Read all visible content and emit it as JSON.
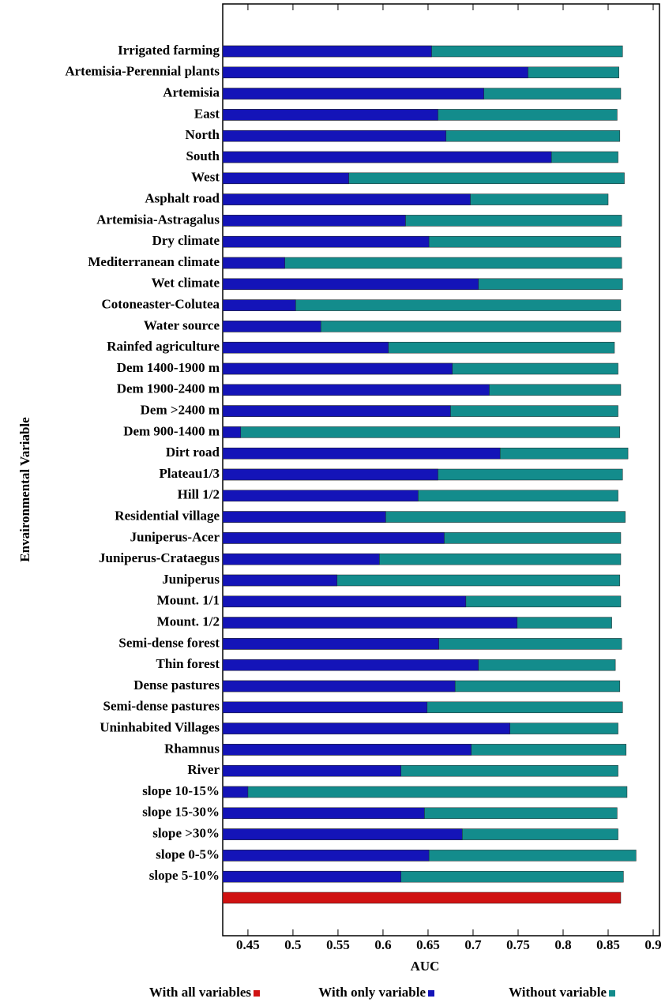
{
  "chart_data": {
    "type": "bar",
    "orientation": "horizontal",
    "x_label": "AUC",
    "y_label": "Envaironmental Variable",
    "categories": [
      "Irrigated farming",
      "Artemisia-Perennial plants",
      "Artemisia",
      "East",
      "North",
      "South",
      "West",
      "Asphalt road",
      "Artemisia-Astragalus",
      "Dry climate",
      "Mediterranean climate",
      "Wet climate",
      "Cotoneaster-Colutea",
      "Water source",
      "Rainfed agriculture",
      "Dem 1400-1900 m",
      "Dem 1900-2400 m",
      "Dem >2400 m",
      "Dem 900-1400 m",
      "Dirt road",
      "Plateau1/3",
      "Hill 1/2",
      "Residential village",
      "Juniperus-Acer",
      "Juniperus-Crataegus",
      "Juniperus",
      "Mount. 1/1",
      "Mount. 1/2",
      "Semi-dense forest",
      "Thin forest",
      "Dense pastures",
      "Semi-dense pastures",
      "Uninhabited Villages",
      "Rhamnus",
      "River",
      "slope 10-15%",
      "slope 15-30%",
      "slope >30%",
      "slope 0-5%",
      "slope 5-10%",
      null
    ],
    "series": [
      {
        "name": "With all variables",
        "color": "#d01212",
        "values": [
          null,
          null,
          null,
          null,
          null,
          null,
          null,
          null,
          null,
          null,
          null,
          null,
          null,
          null,
          null,
          null,
          null,
          null,
          null,
          null,
          null,
          null,
          null,
          null,
          null,
          null,
          null,
          null,
          null,
          null,
          null,
          null,
          null,
          null,
          null,
          null,
          null,
          null,
          null,
          null,
          0.864
        ]
      },
      {
        "name": "With only variable",
        "color": "#1414b8",
        "values": [
          0.654,
          0.761,
          0.712,
          0.661,
          0.67,
          0.787,
          0.562,
          0.697,
          0.625,
          0.651,
          0.491,
          0.706,
          0.503,
          0.531,
          0.606,
          0.677,
          0.718,
          0.675,
          0.442,
          0.73,
          0.661,
          0.639,
          0.603,
          0.668,
          0.596,
          0.549,
          0.692,
          0.749,
          0.662,
          0.706,
          0.68,
          0.649,
          0.741,
          0.698,
          0.62,
          0.45,
          0.646,
          0.688,
          0.651,
          0.62,
          null
        ]
      },
      {
        "name": "Without variable",
        "color": "#138c8c",
        "values": [
          0.866,
          0.862,
          0.864,
          0.86,
          0.863,
          0.861,
          0.868,
          0.85,
          0.865,
          0.864,
          0.865,
          0.866,
          0.864,
          0.864,
          0.857,
          0.861,
          0.864,
          0.861,
          0.863,
          0.872,
          0.866,
          0.861,
          0.869,
          0.864,
          0.864,
          0.863,
          0.864,
          0.854,
          0.865,
          0.858,
          0.863,
          0.866,
          0.861,
          0.87,
          0.861,
          0.871,
          0.86,
          0.861,
          0.881,
          0.867,
          null
        ]
      }
    ],
    "xlim": [
      0.422,
      0.907
    ],
    "xticks": [
      0.45,
      0.5,
      0.55,
      0.6,
      0.65,
      0.7,
      0.75,
      0.8,
      0.85,
      0.9
    ]
  }
}
